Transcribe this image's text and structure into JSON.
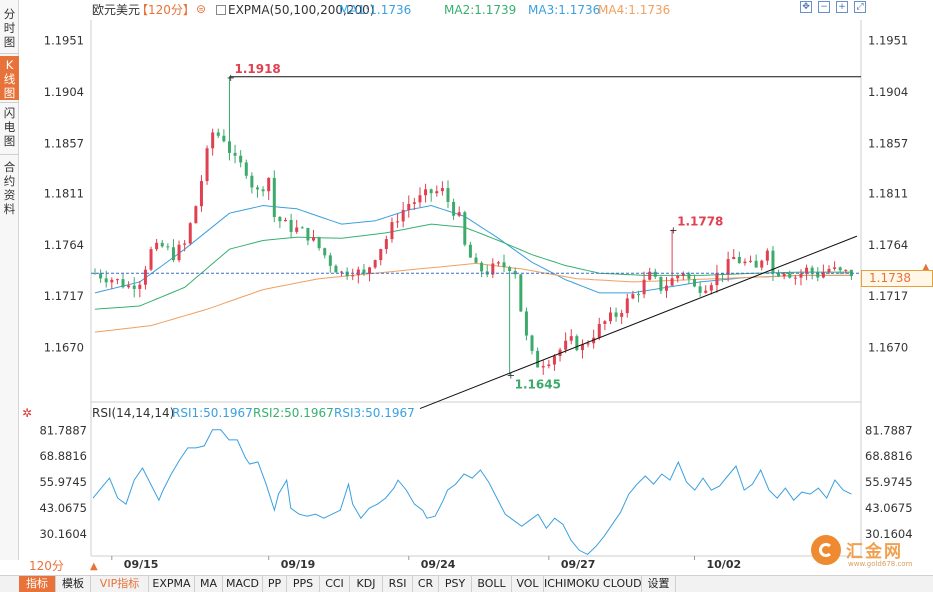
{
  "side_tabs": [
    {
      "label": "分时图",
      "lines": [
        "分",
        "时",
        "图"
      ],
      "active": false
    },
    {
      "label": "K线图",
      "lines": [
        "K",
        "线",
        "图"
      ],
      "active": true
    },
    {
      "label": "闪电图",
      "lines": [
        "闪",
        "电",
        "图"
      ],
      "active": false
    },
    {
      "label": "合约资料",
      "lines": [
        "合",
        "约",
        "资",
        "料"
      ],
      "active": false
    }
  ],
  "header": {
    "pair": "欧元美元",
    "interval": "【120分】",
    "settings_icon": "settings-icon",
    "indicator": "EXPMA(50,100,200,200)",
    "ma1": "MA1:1.1736",
    "ma2": "MA2:1.1739",
    "ma3": "MA3:1.1736",
    "ma4": "MA4:1.1736",
    "controls": [
      {
        "name": "move-icon",
        "glyph": "✥"
      },
      {
        "name": "zoom-out-icon",
        "glyph": "−"
      },
      {
        "name": "zoom-in-icon",
        "glyph": "+"
      },
      {
        "name": "fullscreen-icon",
        "glyph": "⤢"
      }
    ]
  },
  "rsi_header": {
    "settings_icon": "rsi-settings-icon",
    "title": "RSI(14,14,14)",
    "rsi1": "RSI1:50.1967",
    "rsi2": "RSI2:50.1967",
    "rsi3": "RSI3:50.1967"
  },
  "current_price": "1.1738",
  "interval_select": "120分",
  "toolbar": [
    {
      "label": "指标",
      "active": true,
      "vip": false
    },
    {
      "label": "模板",
      "active": false,
      "vip": false
    },
    {
      "label": "VIP指标",
      "active": false,
      "vip": true
    },
    {
      "label": "EXPMA",
      "active": false,
      "vip": false
    },
    {
      "label": "MA",
      "active": false,
      "vip": false
    },
    {
      "label": "MACD",
      "active": false,
      "vip": false
    },
    {
      "label": "PP",
      "active": false,
      "vip": false
    },
    {
      "label": "PPS",
      "active": false,
      "vip": false
    },
    {
      "label": "CCI",
      "active": false,
      "vip": false
    },
    {
      "label": "KDJ",
      "active": false,
      "vip": false
    },
    {
      "label": "RSI",
      "active": false,
      "vip": false
    },
    {
      "label": "CR",
      "active": false,
      "vip": false
    },
    {
      "label": "PSY",
      "active": false,
      "vip": false
    },
    {
      "label": "BOLL",
      "active": false,
      "vip": false
    },
    {
      "label": "VOL",
      "active": false,
      "vip": false
    },
    {
      "label": "ICHIMOKU CLOUD",
      "active": false,
      "vip": false
    },
    {
      "label": "设置",
      "active": false,
      "vip": false
    }
  ],
  "logo": {
    "text": "汇金网",
    "url": "www.gold678.com"
  },
  "colors": {
    "up": "#e04050",
    "down": "#3caa6a",
    "ma1": "#3aa0e0",
    "ma2": "#37b06e",
    "ma4": "#f0a060",
    "accent": "#e8733a",
    "price_line": "#3a6ccc"
  },
  "chart_data": [
    {
      "type": "candlestick",
      "title": "欧元美元",
      "y_ticks": [
        "1.1951",
        "1.1904",
        "1.1857",
        "1.1811",
        "1.1764",
        "1.1717",
        "1.1670"
      ],
      "ylim": [
        1.162,
        1.197
      ],
      "x_ticks": [
        "09/15",
        "09/19",
        "09/24",
        "09/27",
        "10/02"
      ],
      "bar_count": 136,
      "x_tick_bar_index": [
        3,
        31,
        56,
        81,
        107
      ],
      "annotations": [
        {
          "label": "1.1918",
          "value": 1.1918,
          "bar": 24,
          "kind": "high"
        },
        {
          "label": "1.1778",
          "value": 1.1778,
          "bar": 103,
          "kind": "high"
        },
        {
          "label": "1.1645",
          "value": 1.1645,
          "bar": 74,
          "kind": "low"
        }
      ],
      "current_price": 1.1738,
      "trendline": [
        {
          "bar": 58,
          "value": 1.1614
        },
        {
          "bar": 136,
          "value": 1.1772
        }
      ],
      "close_path": [
        [
          0,
          1.1738
        ],
        [
          3,
          1.1733
        ],
        [
          6,
          1.1726
        ],
        [
          8,
          1.1732
        ],
        [
          10,
          1.1758
        ],
        [
          12,
          1.1762
        ],
        [
          14,
          1.1755
        ],
        [
          16,
          1.1764
        ],
        [
          18,
          1.18
        ],
        [
          20,
          1.1847
        ],
        [
          21,
          1.1867
        ],
        [
          23,
          1.1862
        ],
        [
          25,
          1.184
        ],
        [
          27,
          1.1833
        ],
        [
          28,
          1.182
        ],
        [
          29,
          1.1812
        ],
        [
          31,
          1.1826
        ],
        [
          32,
          1.179
        ],
        [
          34,
          1.1782
        ],
        [
          36,
          1.1778
        ],
        [
          38,
          1.1773
        ],
        [
          40,
          1.1761
        ],
        [
          42,
          1.1748
        ],
        [
          44,
          1.1738
        ],
        [
          46,
          1.1742
        ],
        [
          48,
          1.1735
        ],
        [
          50,
          1.1755
        ],
        [
          52,
          1.177
        ],
        [
          54,
          1.179
        ],
        [
          56,
          1.1802
        ],
        [
          58,
          1.1806
        ],
        [
          60,
          1.1812
        ],
        [
          62,
          1.1813
        ],
        [
          63,
          1.1804
        ],
        [
          65,
          1.1788
        ],
        [
          66,
          1.1762
        ],
        [
          68,
          1.1742
        ],
        [
          70,
          1.174
        ],
        [
          72,
          1.1744
        ],
        [
          74,
          1.1745
        ],
        [
          75,
          1.174
        ],
        [
          76,
          1.1705
        ],
        [
          77,
          1.1678
        ],
        [
          78,
          1.1662
        ],
        [
          79,
          1.1655
        ],
        [
          81,
          1.166
        ],
        [
          83,
          1.1668
        ],
        [
          85,
          1.1675
        ],
        [
          87,
          1.167
        ],
        [
          89,
          1.1683
        ],
        [
          91,
          1.1693
        ],
        [
          93,
          1.17
        ],
        [
          95,
          1.1712
        ],
        [
          97,
          1.1723
        ],
        [
          99,
          1.1735
        ],
        [
          101,
          1.1725
        ],
        [
          103,
          1.1732
        ],
        [
          105,
          1.174
        ],
        [
          107,
          1.1724
        ],
        [
          109,
          1.1728
        ],
        [
          111,
          1.1736
        ],
        [
          113,
          1.1745
        ],
        [
          114,
          1.1752
        ],
        [
          116,
          1.1747
        ],
        [
          118,
          1.1741
        ],
        [
          120,
          1.1764
        ],
        [
          121,
          1.1738
        ],
        [
          123,
          1.1742
        ],
        [
          125,
          1.1735
        ],
        [
          127,
          1.1741
        ],
        [
          129,
          1.1737
        ],
        [
          131,
          1.1742
        ],
        [
          133,
          1.1738
        ],
        [
          135,
          1.1738
        ]
      ],
      "series": [
        {
          "name": "MA1",
          "values": [
            [
              0,
              1.172
            ],
            [
              8,
              1.173
            ],
            [
              16,
              1.176
            ],
            [
              24,
              1.1793
            ],
            [
              30,
              1.18
            ],
            [
              36,
              1.1797
            ],
            [
              44,
              1.1783
            ],
            [
              50,
              1.1786
            ],
            [
              56,
              1.1796
            ],
            [
              60,
              1.18
            ],
            [
              66,
              1.179
            ],
            [
              72,
              1.177
            ],
            [
              78,
              1.1748
            ],
            [
              84,
              1.1732
            ],
            [
              90,
              1.172
            ],
            [
              96,
              1.172
            ],
            [
              102,
              1.1725
            ],
            [
              108,
              1.173
            ],
            [
              116,
              1.1734
            ],
            [
              126,
              1.1736
            ],
            [
              135,
              1.1736
            ]
          ]
        },
        {
          "name": "MA2",
          "values": [
            [
              0,
              1.1705
            ],
            [
              8,
              1.1708
            ],
            [
              16,
              1.1725
            ],
            [
              24,
              1.176
            ],
            [
              30,
              1.1768
            ],
            [
              36,
              1.1771
            ],
            [
              44,
              1.177
            ],
            [
              52,
              1.1775
            ],
            [
              60,
              1.1783
            ],
            [
              66,
              1.178
            ],
            [
              72,
              1.1768
            ],
            [
              78,
              1.1755
            ],
            [
              84,
              1.1745
            ],
            [
              90,
              1.1738
            ],
            [
              98,
              1.1736
            ],
            [
              108,
              1.1736
            ],
            [
              118,
              1.1738
            ],
            [
              126,
              1.1739
            ],
            [
              135,
              1.1739
            ]
          ]
        },
        {
          "name": "MA4",
          "values": [
            [
              0,
              1.1684
            ],
            [
              10,
              1.169
            ],
            [
              20,
              1.1705
            ],
            [
              30,
              1.1723
            ],
            [
              40,
              1.1733
            ],
            [
              50,
              1.1738
            ],
            [
              60,
              1.1743
            ],
            [
              68,
              1.1747
            ],
            [
              76,
              1.1742
            ],
            [
              86,
              1.1733
            ],
            [
              96,
              1.173
            ],
            [
              106,
              1.1732
            ],
            [
              116,
              1.1734
            ],
            [
              126,
              1.1736
            ],
            [
              135,
              1.1736
            ]
          ]
        }
      ]
    },
    {
      "type": "line",
      "title": "RSI(14,14,14)",
      "y_ticks": [
        "81.7887",
        "68.8816",
        "55.9745",
        "43.0675",
        "30.1604"
      ],
      "ylim": [
        19.7,
        86.4
      ],
      "series": [
        {
          "name": "RSI1",
          "values": [
            [
              0,
              48
            ],
            [
              2,
              53
            ],
            [
              4,
              58
            ],
            [
              6,
              48
            ],
            [
              8,
              45
            ],
            [
              10,
              57
            ],
            [
              12,
              63
            ],
            [
              14,
              55
            ],
            [
              16,
              47
            ],
            [
              17,
              52
            ],
            [
              19,
              60
            ],
            [
              21,
              67
            ],
            [
              23,
              73
            ],
            [
              25,
              73
            ],
            [
              27,
              74
            ],
            [
              29,
              82
            ],
            [
              31,
              82
            ],
            [
              33,
              77
            ],
            [
              35,
              77
            ],
            [
              37,
              68
            ],
            [
              38,
              65
            ],
            [
              40,
              66
            ],
            [
              42,
              55
            ],
            [
              44,
              42
            ],
            [
              45,
              50
            ],
            [
              47,
              57
            ],
            [
              48,
              43
            ],
            [
              50,
              40
            ],
            [
              52,
              39
            ],
            [
              54,
              40
            ],
            [
              56,
              38
            ],
            [
              58,
              40
            ],
            [
              60,
              42
            ],
            [
              62,
              55
            ],
            [
              63,
              45
            ],
            [
              65,
              38
            ],
            [
              67,
              43
            ],
            [
              69,
              45
            ],
            [
              71,
              48
            ],
            [
              73,
              53
            ],
            [
              74,
              57
            ],
            [
              76,
              52
            ],
            [
              78,
              45
            ],
            [
              80,
              42
            ],
            [
              81,
              38
            ],
            [
              83,
              39
            ],
            [
              85,
              47
            ],
            [
              86,
              52
            ],
            [
              88,
              55
            ],
            [
              90,
              60
            ],
            [
              92,
              58
            ],
            [
              94,
              62
            ],
            [
              96,
              56
            ],
            [
              98,
              48
            ],
            [
              100,
              40
            ],
            [
              102,
              37
            ],
            [
              104,
              34
            ],
            [
              106,
              37
            ],
            [
              108,
              40
            ],
            [
              110,
              33
            ],
            [
              112,
              38
            ],
            [
              114,
              35
            ],
            [
              116,
              27
            ],
            [
              118,
              22
            ],
            [
              120,
              20
            ],
            [
              122,
              24
            ],
            [
              124,
              29
            ],
            [
              126,
              35
            ],
            [
              128,
              41
            ],
            [
              130,
              50
            ],
            [
              132,
              55
            ],
            [
              134,
              59
            ],
            [
              136,
              55
            ],
            [
              138,
              60
            ],
            [
              140,
              57
            ],
            [
              142,
              66
            ],
            [
              144,
              56
            ],
            [
              146,
              52
            ],
            [
              148,
              58
            ],
            [
              150,
              52
            ],
            [
              152,
              54
            ],
            [
              154,
              59
            ],
            [
              156,
              64
            ],
            [
              158,
              52
            ],
            [
              160,
              55
            ],
            [
              162,
              62
            ],
            [
              164,
              52
            ],
            [
              166,
              48
            ],
            [
              168,
              53
            ],
            [
              170,
              47
            ],
            [
              172,
              51
            ],
            [
              174,
              50
            ],
            [
              176,
              53
            ],
            [
              178,
              48
            ],
            [
              180,
              57
            ],
            [
              182,
              52
            ],
            [
              184,
              50
            ]
          ]
        }
      ]
    }
  ]
}
